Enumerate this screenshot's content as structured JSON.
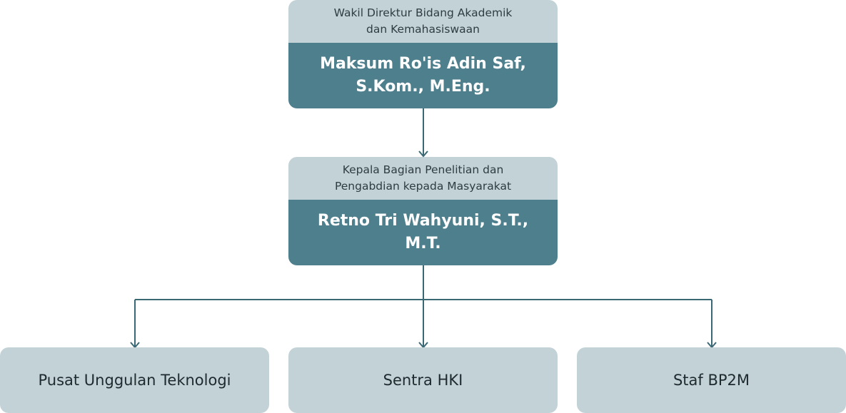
{
  "top": {
    "role": "Wakil Direktur Bidang Akademik\ndan Kemahasiswaan",
    "name": "Maksum Ro'is Adin Saf,\nS.Kom., M.Eng."
  },
  "middle": {
    "role": "Kepala Bagian Penelitian dan\nPengabdian kepada Masyarakat",
    "name": "Retno Tri Wahyuni, S.T.,\nM.T."
  },
  "units": [
    {
      "label": "Pusat Unggulan Teknologi"
    },
    {
      "label": "Sentra HKI"
    },
    {
      "label": "Staf BP2M"
    }
  ],
  "colors": {
    "header_bg": "#c2d2d7",
    "name_bg": "#4e7f8d",
    "connector": "#3a6975"
  }
}
